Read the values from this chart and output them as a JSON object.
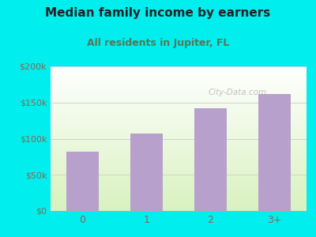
{
  "title": "Median family income by earners",
  "subtitle": "All residents in Jupiter, FL",
  "categories": [
    "0",
    "1",
    "2",
    "3+"
  ],
  "values": [
    82000,
    107000,
    142000,
    162000
  ],
  "bar_color": "#b8a0cc",
  "ylim": [
    0,
    200000
  ],
  "yticks": [
    0,
    50000,
    100000,
    150000,
    200000
  ],
  "ytick_labels": [
    "$0",
    "$50k",
    "$100k",
    "$150k",
    "$200k"
  ],
  "title_fontsize": 11,
  "subtitle_fontsize": 9,
  "title_color": "#222222",
  "subtitle_color": "#557755",
  "tick_label_color": "#886655",
  "background_outer": "#00EEEE",
  "plot_bg_top": "#f8faf8",
  "plot_bg_bottom": "#d8eec8",
  "watermark": "City-Data.com",
  "grid_color": "#cccccc",
  "bar_width": 0.5
}
